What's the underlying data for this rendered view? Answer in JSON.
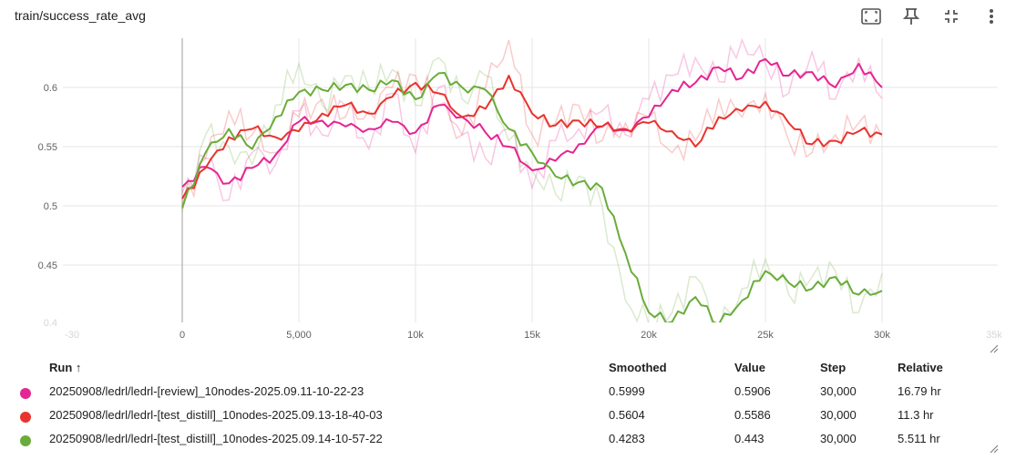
{
  "header": {
    "title": "train/success_rate_avg",
    "icons": [
      "fullscreen-icon",
      "pin-icon",
      "collapse-icon",
      "more-vert-icon"
    ]
  },
  "chart_data": {
    "type": "line",
    "title": "train/success_rate_avg",
    "xlabel": "",
    "ylabel": "",
    "xlim": [
      -30,
      30000
    ],
    "ylim": [
      0.4,
      0.64
    ],
    "x_ticks": [
      0,
      5000,
      10000,
      15000,
      20000,
      25000,
      30000
    ],
    "x_tick_labels": [
      "0",
      "5,000",
      "10k",
      "15k",
      "20k",
      "25k",
      "30k"
    ],
    "x_tick_faint": [
      "-30",
      "35k"
    ],
    "y_ticks": [
      0.45,
      0.5,
      0.55,
      0.6
    ],
    "y_tick_labels": [
      "0.45",
      "0.5",
      "0.55",
      "0.6"
    ],
    "y_tick_faint": [
      "0.4"
    ],
    "grid": true,
    "series": [
      {
        "name": "20250908/ledrl/ledrl-[review]_10nodes-2025.09.11-10-22-23",
        "color": "#e52592",
        "smoothed": [
          [
            0,
            0.516
          ],
          [
            1000,
            0.533
          ],
          [
            2000,
            0.519
          ],
          [
            3000,
            0.532
          ],
          [
            4000,
            0.543
          ],
          [
            5000,
            0.571
          ],
          [
            6000,
            0.572
          ],
          [
            7000,
            0.567
          ],
          [
            8000,
            0.565
          ],
          [
            9000,
            0.571
          ],
          [
            10000,
            0.562
          ],
          [
            11000,
            0.585
          ],
          [
            12000,
            0.575
          ],
          [
            13000,
            0.562
          ],
          [
            14000,
            0.55
          ],
          [
            15000,
            0.53
          ],
          [
            16000,
            0.538
          ],
          [
            17000,
            0.552
          ],
          [
            18000,
            0.567
          ],
          [
            19000,
            0.564
          ],
          [
            20000,
            0.575
          ],
          [
            21000,
            0.598
          ],
          [
            22000,
            0.604
          ],
          [
            23000,
            0.617
          ],
          [
            24000,
            0.608
          ],
          [
            25000,
            0.624
          ],
          [
            26000,
            0.61
          ],
          [
            27000,
            0.613
          ],
          [
            28000,
            0.6
          ],
          [
            29000,
            0.62
          ],
          [
            30000,
            0.5999
          ]
        ],
        "raw": [
          [
            0,
            0.511
          ],
          [
            1000,
            0.54
          ],
          [
            2000,
            0.505
          ],
          [
            3000,
            0.545
          ],
          [
            4000,
            0.535
          ],
          [
            5000,
            0.58
          ],
          [
            6000,
            0.56
          ],
          [
            7000,
            0.585
          ],
          [
            8000,
            0.548
          ],
          [
            9000,
            0.595
          ],
          [
            10000,
            0.545
          ],
          [
            11000,
            0.6
          ],
          [
            12000,
            0.56
          ],
          [
            13000,
            0.54
          ],
          [
            14000,
            0.565
          ],
          [
            15000,
            0.515
          ],
          [
            16000,
            0.555
          ],
          [
            17000,
            0.565
          ],
          [
            18000,
            0.58
          ],
          [
            19000,
            0.56
          ],
          [
            20000,
            0.59
          ],
          [
            21000,
            0.61
          ],
          [
            22000,
            0.625
          ],
          [
            23000,
            0.605
          ],
          [
            24000,
            0.64
          ],
          [
            25000,
            0.62
          ],
          [
            26000,
            0.595
          ],
          [
            27000,
            0.63
          ],
          [
            28000,
            0.59
          ],
          [
            29000,
            0.625
          ],
          [
            30000,
            0.5906
          ]
        ],
        "table": {
          "smoothed": "0.5999",
          "value": "0.5906",
          "step": "30,000",
          "relative": "16.79 hr"
        }
      },
      {
        "name": "20250908/ledrl/ledrl-[test_distill]_10nodes-2025.09.13-18-40-03",
        "color": "#e8332e",
        "smoothed": [
          [
            0,
            0.506
          ],
          [
            1000,
            0.532
          ],
          [
            2000,
            0.558
          ],
          [
            3000,
            0.565
          ],
          [
            4000,
            0.558
          ],
          [
            5000,
            0.563
          ],
          [
            6000,
            0.578
          ],
          [
            7000,
            0.585
          ],
          [
            8000,
            0.578
          ],
          [
            9000,
            0.592
          ],
          [
            10000,
            0.604
          ],
          [
            11000,
            0.595
          ],
          [
            12000,
            0.575
          ],
          [
            13000,
            0.582
          ],
          [
            14000,
            0.61
          ],
          [
            15000,
            0.578
          ],
          [
            16000,
            0.568
          ],
          [
            17000,
            0.572
          ],
          [
            18000,
            0.567
          ],
          [
            19000,
            0.565
          ],
          [
            20000,
            0.57
          ],
          [
            21000,
            0.563
          ],
          [
            22000,
            0.55
          ],
          [
            23000,
            0.575
          ],
          [
            24000,
            0.58
          ],
          [
            25000,
            0.588
          ],
          [
            26000,
            0.57
          ],
          [
            27000,
            0.552
          ],
          [
            28000,
            0.555
          ],
          [
            29000,
            0.563
          ],
          [
            30000,
            0.5604
          ]
        ],
        "raw": [
          [
            0,
            0.5
          ],
          [
            1000,
            0.54
          ],
          [
            2000,
            0.58
          ],
          [
            3000,
            0.56
          ],
          [
            4000,
            0.545
          ],
          [
            5000,
            0.575
          ],
          [
            6000,
            0.59
          ],
          [
            7000,
            0.575
          ],
          [
            8000,
            0.58
          ],
          [
            9000,
            0.6
          ],
          [
            10000,
            0.61
          ],
          [
            11000,
            0.585
          ],
          [
            12000,
            0.56
          ],
          [
            13000,
            0.6
          ],
          [
            14000,
            0.64
          ],
          [
            15000,
            0.56
          ],
          [
            16000,
            0.57
          ],
          [
            17000,
            0.585
          ],
          [
            18000,
            0.555
          ],
          [
            19000,
            0.57
          ],
          [
            20000,
            0.575
          ],
          [
            21000,
            0.545
          ],
          [
            22000,
            0.555
          ],
          [
            23000,
            0.59
          ],
          [
            24000,
            0.575
          ],
          [
            25000,
            0.595
          ],
          [
            26000,
            0.555
          ],
          [
            27000,
            0.545
          ],
          [
            28000,
            0.56
          ],
          [
            29000,
            0.57
          ],
          [
            30000,
            0.5586
          ]
        ],
        "table": {
          "smoothed": "0.5604",
          "value": "0.5586",
          "step": "30,000",
          "relative": "11.3 hr"
        }
      },
      {
        "name": "20250908/ledrl/ledrl-[test_distill]_10nodes-2025.09.14-10-57-22",
        "color": "#6aac3a",
        "smoothed": [
          [
            0,
            0.498
          ],
          [
            1000,
            0.545
          ],
          [
            2000,
            0.565
          ],
          [
            3000,
            0.548
          ],
          [
            4000,
            0.575
          ],
          [
            5000,
            0.596
          ],
          [
            6000,
            0.598
          ],
          [
            7000,
            0.602
          ],
          [
            8000,
            0.598
          ],
          [
            9000,
            0.606
          ],
          [
            10000,
            0.59
          ],
          [
            11000,
            0.612
          ],
          [
            12000,
            0.6
          ],
          [
            13000,
            0.598
          ],
          [
            14000,
            0.565
          ],
          [
            15000,
            0.545
          ],
          [
            16000,
            0.525
          ],
          [
            17000,
            0.52
          ],
          [
            18000,
            0.515
          ],
          [
            19000,
            0.46
          ],
          [
            20000,
            0.41
          ],
          [
            21000,
            0.402
          ],
          [
            22000,
            0.423
          ],
          [
            23000,
            0.4
          ],
          [
            24000,
            0.42
          ],
          [
            25000,
            0.445
          ],
          [
            26000,
            0.435
          ],
          [
            27000,
            0.43
          ],
          [
            28000,
            0.44
          ],
          [
            29000,
            0.425
          ],
          [
            30000,
            0.4283
          ]
        ],
        "raw": [
          [
            0,
            0.495
          ],
          [
            1000,
            0.56
          ],
          [
            2000,
            0.55
          ],
          [
            3000,
            0.535
          ],
          [
            4000,
            0.585
          ],
          [
            5000,
            0.62
          ],
          [
            6000,
            0.585
          ],
          [
            7000,
            0.61
          ],
          [
            8000,
            0.6
          ],
          [
            9000,
            0.615
          ],
          [
            10000,
            0.585
          ],
          [
            11000,
            0.625
          ],
          [
            12000,
            0.59
          ],
          [
            13000,
            0.61
          ],
          [
            14000,
            0.555
          ],
          [
            15000,
            0.53
          ],
          [
            16000,
            0.51
          ],
          [
            17000,
            0.525
          ],
          [
            18000,
            0.5
          ],
          [
            19000,
            0.42
          ],
          [
            20000,
            0.4
          ],
          [
            21000,
            0.41
          ],
          [
            22000,
            0.44
          ],
          [
            23000,
            0.395
          ],
          [
            24000,
            0.43
          ],
          [
            25000,
            0.455
          ],
          [
            26000,
            0.425
          ],
          [
            27000,
            0.44
          ],
          [
            28000,
            0.445
          ],
          [
            29000,
            0.41
          ],
          [
            30000,
            0.443
          ]
        ],
        "table": {
          "smoothed": "0.4283",
          "value": "0.443",
          "step": "30,000",
          "relative": "5.511 hr"
        }
      }
    ]
  },
  "table": {
    "headers": {
      "run": "Run ↑",
      "smoothed": "Smoothed",
      "value": "Value",
      "step": "Step",
      "relative": "Relative"
    }
  }
}
